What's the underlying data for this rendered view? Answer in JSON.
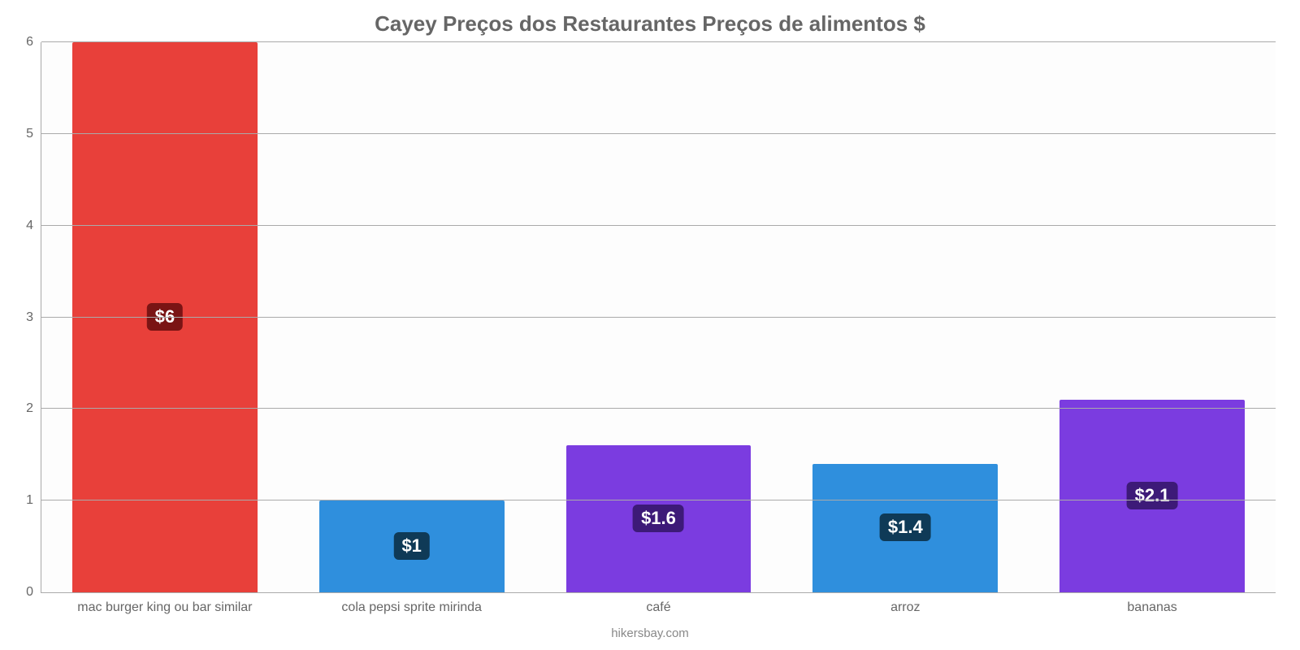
{
  "chart": {
    "type": "bar",
    "title": "Cayey Preços dos Restaurantes Preços de alimentos $",
    "title_fontsize": 26,
    "title_color": "#666666",
    "background_color": "#ffffff",
    "plot_background_color": "#fdfdfd",
    "axis_color": "#aaaaaa",
    "grid_color": "#aaaaaa",
    "tick_label_color": "#666666",
    "tick_label_fontsize": 16,
    "x_label_fontsize": 16,
    "value_label_fontsize": 22,
    "ylim_min": 0,
    "ylim_max": 6,
    "ytick_step": 1,
    "yticks": [
      0,
      1,
      2,
      3,
      4,
      5,
      6
    ],
    "bar_width_pct": 75,
    "footer": "hikersbay.com",
    "footer_fontsize": 15,
    "footer_color": "#888888",
    "categories": [
      "mac burger king ou bar similar",
      "cola pepsi sprite mirinda",
      "café",
      "arroz",
      "bananas"
    ],
    "values": [
      6,
      1,
      1.6,
      1.4,
      2.1
    ],
    "value_labels": [
      "$6",
      "$1",
      "$1.6",
      "$1.4",
      "$2.1"
    ],
    "bar_colors": [
      "#e8403a",
      "#2f8fdd",
      "#7b3ce0",
      "#2f8fdd",
      "#7b3ce0"
    ],
    "value_label_bg_colors": [
      "#7a1414",
      "#0f3a57",
      "#3d1a78",
      "#0f3a57",
      "#3d1a78"
    ],
    "value_label_text_color": "#ffffff"
  }
}
